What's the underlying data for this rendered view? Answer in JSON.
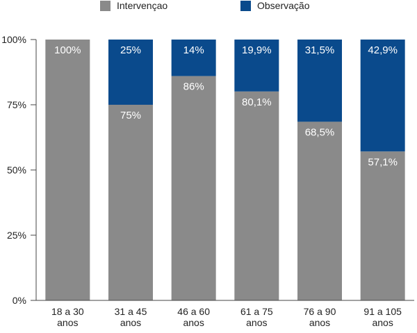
{
  "chart_data": {
    "type": "bar",
    "stacked": true,
    "normalized_percent": true,
    "categories": [
      [
        "18 a 30",
        "anos"
      ],
      [
        "31 a 45",
        "anos"
      ],
      [
        "46 a 60",
        "anos"
      ],
      [
        "61 a 75",
        "anos"
      ],
      [
        "76 a 90",
        "anos"
      ],
      [
        "91 a 105",
        "anos"
      ]
    ],
    "series": [
      {
        "name": "Intervençao",
        "color": "#8a8a8a",
        "values": [
          100,
          75,
          86,
          80.1,
          68.5,
          57.1
        ],
        "labels": [
          "100%",
          "75%",
          "86%",
          "80,1%",
          "68,5%",
          "57,1%"
        ]
      },
      {
        "name": "Observação",
        "color": "#0a4a8c",
        "values": [
          0,
          25,
          14,
          19.9,
          31.5,
          42.9
        ],
        "labels": [
          "",
          "25%",
          "14%",
          "19,9%",
          "31,5%",
          "42,9%"
        ]
      }
    ],
    "ylim": [
      0,
      100
    ],
    "yticks": [
      0,
      25,
      50,
      75,
      100
    ],
    "ytick_labels": [
      "0%",
      "25%",
      "50%",
      "75%",
      "100%"
    ],
    "legend_position": "top",
    "grid": false,
    "title": "",
    "xlabel": "",
    "ylabel": ""
  }
}
